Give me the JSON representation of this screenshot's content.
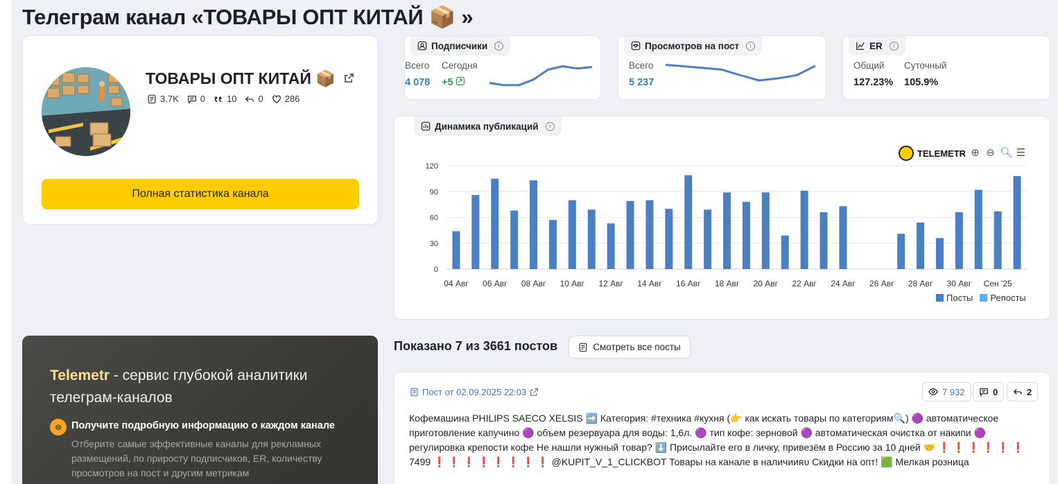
{
  "page": {
    "title": "Телеграм канал «ТОВАРЫ ОПТ КИТАЙ 📦 »"
  },
  "channel": {
    "name": "ТОВАРЫ ОПТ КИТАЙ 📦",
    "posts": "3.7K",
    "comments": "0",
    "quotes": "10",
    "reposts": "0",
    "reactions": "286",
    "full_stats_label": "Полная статистика канала"
  },
  "subscribers": {
    "label": "Подписчики",
    "total_label": "Всего",
    "today_label": "Сегодня",
    "total": "4 078",
    "today": "+5",
    "trend": [
      0.2,
      0.1,
      0.1,
      0.35,
      0.8,
      0.95,
      0.85,
      0.92
    ]
  },
  "views": {
    "label": "Просмотров на пост",
    "total_label": "Всего",
    "total": "5 237",
    "trend": [
      0.95,
      0.88,
      0.8,
      0.72,
      0.45,
      0.2,
      0.3,
      0.45,
      0.9
    ]
  },
  "er": {
    "label": "ER",
    "overall_label": "Общий",
    "daily_label": "Суточный",
    "overall": "127.23%",
    "daily": "105.9%"
  },
  "publications": {
    "label": "Динамика публикаций",
    "logo_text": "TELEMETR",
    "legend_posts": "Посты",
    "legend_reposts": "Репосты",
    "colors": {
      "posts": "#4a7fc4",
      "reposts": "#5ab0f0"
    }
  },
  "chart_data": {
    "type": "bar",
    "title": "Динамика публикаций",
    "ylim": [
      0,
      120
    ],
    "yticks": [
      0,
      30,
      60,
      90,
      120
    ],
    "x_tick_labels": [
      "04 Авг",
      "06 Авг",
      "08 Авг",
      "10 Авг",
      "12 Авг",
      "14 Авг",
      "16 Авг",
      "18 Авг",
      "20 Авг",
      "22 Авг",
      "24 Авг",
      "26 Авг",
      "28 Авг",
      "30 Авг",
      "Сен '25"
    ],
    "series": [
      {
        "name": "Посты",
        "values": [
          44,
          86,
          105,
          68,
          103,
          57,
          80,
          69,
          53,
          79,
          80,
          70,
          109,
          69,
          89,
          78,
          89,
          39,
          91,
          66,
          73,
          0,
          0,
          41,
          54,
          36,
          66,
          92,
          67,
          108
        ]
      },
      {
        "name": "Репосты",
        "values": [
          0,
          0,
          0,
          0,
          0,
          0,
          0,
          0,
          0,
          0,
          0,
          0,
          0,
          0,
          0,
          0,
          0,
          0,
          0,
          0,
          0,
          0,
          0,
          0,
          0,
          0,
          0,
          0,
          0,
          0
        ]
      }
    ]
  },
  "promo": {
    "brand": "Telemetr",
    "title_rest": " - сервис глубокой аналитики телеграм-каналов",
    "heading": "Получите подробную информацию о каждом канале",
    "text": "Отберите самые эффективные каналы для рекламных размещений, по приросту подписчиков, ER, количеству просмотров на пост и другим метрикам"
  },
  "posts": {
    "shown_label": "Показано 7 из 3661 постов",
    "view_all_label": "Смотреть все посты",
    "first": {
      "date_label": "Пост от 02.09.2025 22:03",
      "views": "7 932",
      "comments": "0",
      "forwards": "2",
      "text": "Кофемашина PHILIPS SAECO XELSIS ➡️ Категория: #техника #кухня (👉 как искать товары по категориям🔍) 🟣 автоматическое приготовление капучино 🟣 объем резервуара для воды: 1,6л. 🟣 тип кофе: зерновой 🟣 автоматическая очистка от накипи 🟣 регулировка крепости кофе Не нашли нужный товар? ⬇️ Присылайте его в личку, привезём в Россию за 10 дней 🤝 ❗ ❗ ❗ ❗ ❗ ❗ 7499 ❗ ❗ ❗ ❗ ❗ ❗ ❗ ❗ @KUPIT_V_1_CLICKBOT Товары на канале в наличииʀᴜ Скидки на опт! 🟩 Мелкая розница"
    }
  }
}
